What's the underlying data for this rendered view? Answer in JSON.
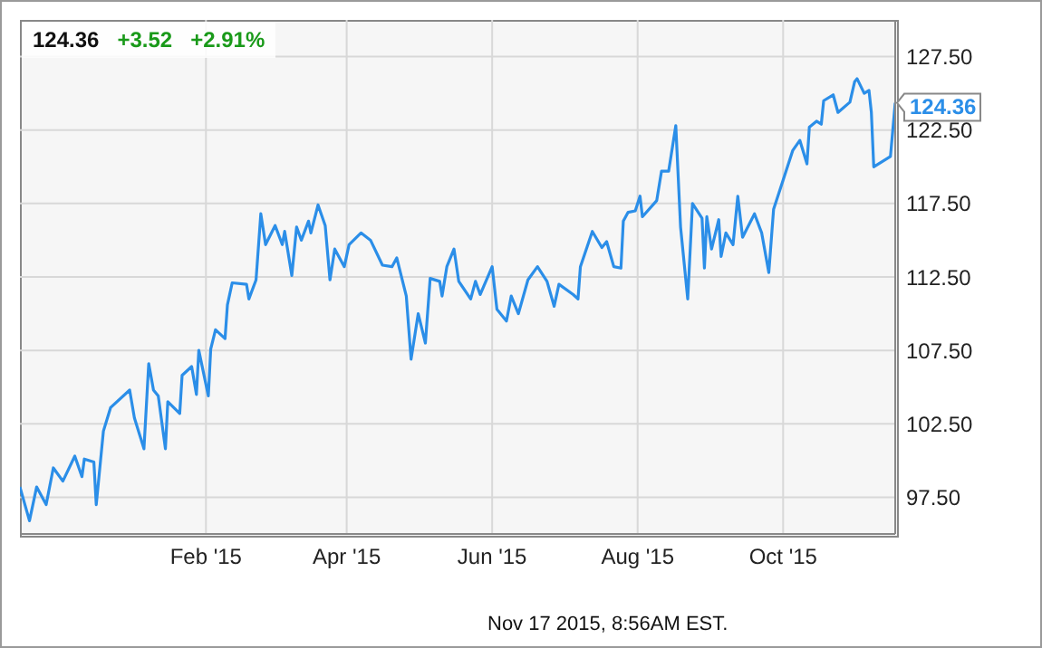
{
  "chart_data": {
    "type": "line",
    "x": [
      "2014-11-15",
      "2014-11-19",
      "2014-11-22",
      "2014-11-26",
      "2014-11-29",
      "2014-12-03",
      "2014-12-08",
      "2014-12-11",
      "2014-12-12",
      "2014-12-16",
      "2014-12-17",
      "2014-12-20",
      "2014-12-23",
      "2014-12-31",
      "2015-01-02",
      "2015-01-06",
      "2015-01-08",
      "2015-01-10",
      "2015-01-12",
      "2015-01-15",
      "2015-01-16",
      "2015-01-21",
      "2015-01-22",
      "2015-01-26",
      "2015-01-28",
      "2015-01-29",
      "2015-02-02",
      "2015-02-03",
      "2015-02-05",
      "2015-02-09",
      "2015-02-10",
      "2015-02-12",
      "2015-02-18",
      "2015-02-19",
      "2015-02-22",
      "2015-02-24",
      "2015-02-26",
      "2015-03-02",
      "2015-03-05",
      "2015-03-06",
      "2015-03-09",
      "2015-03-11",
      "2015-03-13",
      "2015-03-16",
      "2015-03-17",
      "2015-03-20",
      "2015-03-23",
      "2015-03-25",
      "2015-03-27",
      "2015-03-31",
      "2015-04-02",
      "2015-04-07",
      "2015-04-11",
      "2015-04-16",
      "2015-04-20",
      "2015-04-22",
      "2015-04-26",
      "2015-04-28",
      "2015-05-01",
      "2015-05-04",
      "2015-05-06",
      "2015-05-10",
      "2015-05-11",
      "2015-05-13",
      "2015-05-16",
      "2015-05-18",
      "2015-05-23",
      "2015-05-25",
      "2015-05-27",
      "2015-06-01",
      "2015-06-03",
      "2015-06-07",
      "2015-06-09",
      "2015-06-12",
      "2015-06-16",
      "2015-06-20",
      "2015-06-24",
      "2015-06-27",
      "2015-06-29",
      "2015-07-05",
      "2015-07-07",
      "2015-07-08",
      "2015-07-13",
      "2015-07-17",
      "2015-07-19",
      "2015-07-22",
      "2015-07-25",
      "2015-07-26",
      "2015-07-28",
      "2015-07-31",
      "2015-08-02",
      "2015-08-03",
      "2015-08-09",
      "2015-08-11",
      "2015-08-14",
      "2015-08-17",
      "2015-08-19",
      "2015-08-22",
      "2015-08-24",
      "2015-08-28",
      "2015-08-29",
      "2015-08-30",
      "2015-09-01",
      "2015-09-04",
      "2015-09-05",
      "2015-09-07",
      "2015-09-10",
      "2015-09-12",
      "2015-09-14",
      "2015-09-19",
      "2015-09-22",
      "2015-09-25",
      "2015-09-27",
      "2015-10-01",
      "2015-10-05",
      "2015-10-08",
      "2015-10-11",
      "2015-10-12",
      "2015-10-15",
      "2015-10-17",
      "2015-10-18",
      "2015-10-22",
      "2015-10-24",
      "2015-10-29",
      "2015-10-31",
      "2015-11-01",
      "2015-11-04",
      "2015-11-06",
      "2015-11-07",
      "2015-11-08",
      "2015-11-15",
      "2015-11-17"
    ],
    "series": [
      {
        "color": "#2b8ee8",
        "values": [
          98.2,
          95.9,
          98.2,
          97.0,
          99.5,
          98.6,
          100.3,
          98.9,
          100.1,
          99.9,
          97.0,
          102.0,
          103.6,
          104.8,
          102.9,
          100.8,
          106.6,
          104.8,
          104.4,
          100.8,
          104.0,
          103.2,
          105.8,
          106.4,
          104.5,
          107.5,
          104.4,
          107.6,
          108.9,
          108.3,
          110.6,
          112.1,
          112.0,
          111.0,
          112.3,
          116.8,
          114.7,
          116.0,
          114.7,
          115.6,
          112.6,
          115.9,
          115.0,
          116.3,
          115.5,
          117.4,
          116.0,
          112.3,
          114.4,
          113.2,
          114.7,
          115.5,
          115.0,
          113.3,
          113.2,
          113.8,
          111.2,
          106.9,
          110.0,
          108.0,
          112.4,
          112.2,
          111.2,
          113.2,
          114.4,
          112.2,
          111.0,
          112.2,
          111.3,
          113.2,
          110.3,
          109.5,
          111.2,
          110.0,
          112.3,
          113.2,
          112.2,
          110.5,
          112.0,
          111.3,
          111.0,
          113.2,
          115.6,
          114.5,
          114.9,
          113.2,
          113.1,
          116.3,
          116.9,
          117.0,
          118.0,
          116.6,
          117.7,
          119.7,
          119.7,
          122.8,
          115.9,
          111.0,
          117.5,
          116.5,
          113.1,
          116.6,
          114.4,
          116.4,
          113.9,
          115.5,
          114.7,
          118.0,
          115.2,
          116.8,
          115.5,
          112.8,
          117.1,
          119.1,
          121.1,
          121.8,
          120.2,
          122.7,
          123.1,
          122.9,
          124.5,
          124.9,
          123.7,
          124.4,
          125.8,
          126.0,
          125.0,
          125.2,
          123.7,
          120.0,
          120.7,
          124.36
        ]
      }
    ],
    "xlim": [
      "2014-11-15",
      "2015-11-17"
    ],
    "xticks": [
      {
        "value": "2015-02-01",
        "label": "Feb '15"
      },
      {
        "value": "2015-04-01",
        "label": "Apr '15"
      },
      {
        "value": "2015-06-01",
        "label": "Jun '15"
      },
      {
        "value": "2015-08-01",
        "label": "Aug '15"
      },
      {
        "value": "2015-10-01",
        "label": "Oct '15"
      }
    ],
    "ylim": [
      95,
      130
    ],
    "yticks": [
      {
        "value": 97.5,
        "label": "97.50"
      },
      {
        "value": 102.5,
        "label": "102.50"
      },
      {
        "value": 107.5,
        "label": "107.50"
      },
      {
        "value": 112.5,
        "label": "112.50"
      },
      {
        "value": 117.5,
        "label": "117.50"
      },
      {
        "value": 122.5,
        "label": "122.50"
      },
      {
        "value": 127.5,
        "label": "127.50"
      }
    ],
    "grid": true,
    "annotations": [
      "124.36",
      "+3.52",
      "+2.91%",
      {
        "text": "124.36",
        "x": "2015-11-17",
        "y": 124.36
      },
      "Nov 17 2015, 8:56AM EST."
    ]
  }
}
